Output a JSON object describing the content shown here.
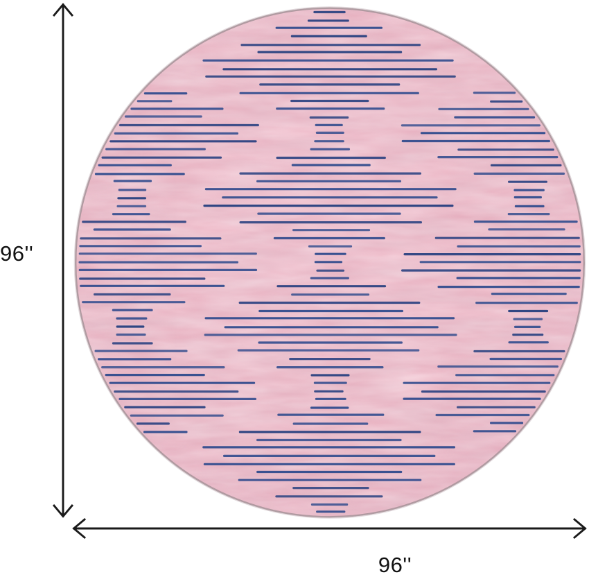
{
  "labels": {
    "height": "96''",
    "width": "96''"
  },
  "rug": {
    "shape": "round",
    "pattern": "diamond-stripes",
    "colors": {
      "pink_center": "#edb4c4",
      "pink_mid": "#e8aebe",
      "pink_edge": "#e1a2b6",
      "stripe_navy": "#3a5190",
      "stripe_navy_dark": "#2e4482",
      "rim": "#a28b92",
      "rim_outer": "#cbbcc1"
    }
  },
  "arrows": {
    "color": "#1a1a1a"
  }
}
